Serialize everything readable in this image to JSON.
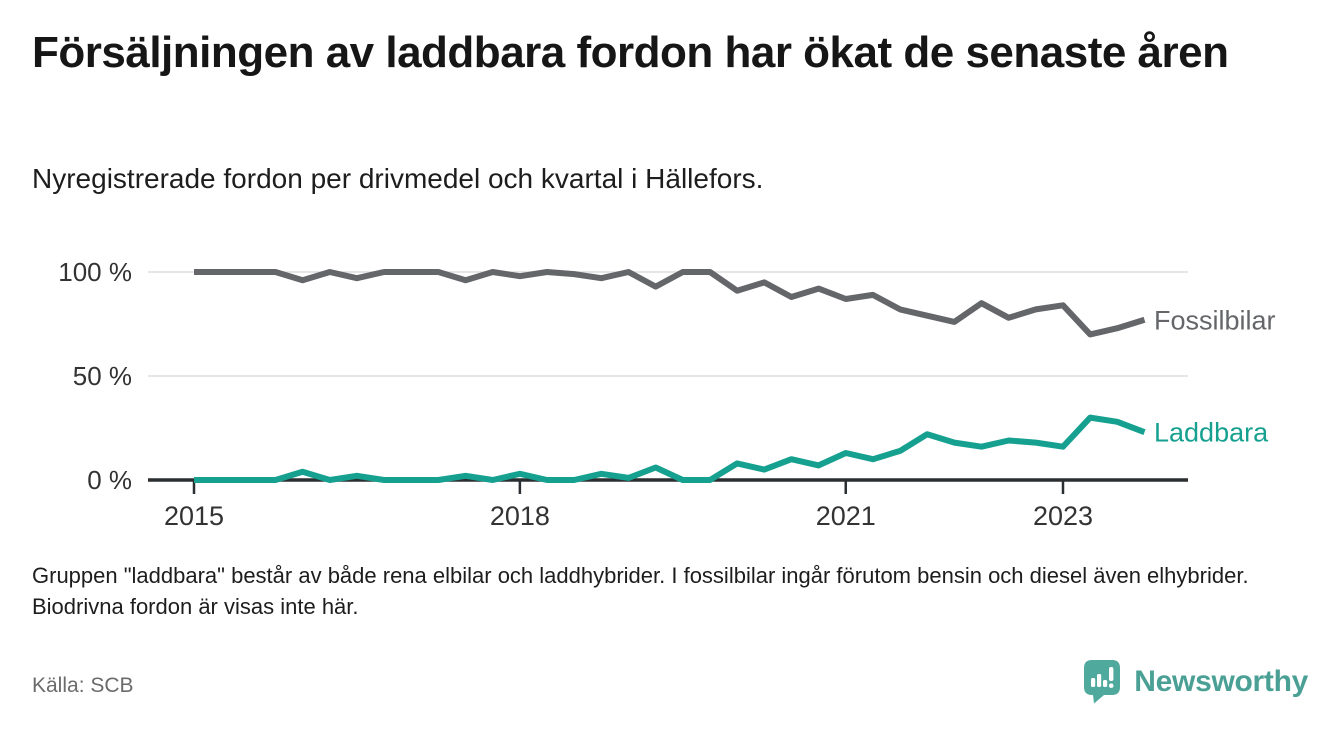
{
  "title": "Försäljningen av laddbara fordon har ökat de senaste åren",
  "subtitle": "Nyregistrerade fordon per drivmedel och kvartal i Hällefors.",
  "footnote": "Gruppen \"laddbara\" består av både rena elbilar och laddhybrider. I fossilbilar ingår förutom bensin och diesel även elhybrider. Biodrivna fordon är visas inte här.",
  "source": "Källa: SCB",
  "logo": {
    "brand": "Newsworthy",
    "icon": "bar-chart-pin-icon"
  },
  "colors": {
    "fossil": "#64666a",
    "laddbara": "#16a090",
    "grid": "#dddddd",
    "axis": "#2b2e31",
    "tick_label": "#333333",
    "brand": "#4ba095"
  },
  "chart_data": {
    "type": "line",
    "title": "",
    "xlabel": "",
    "ylabel": "",
    "x_unit": "quarter",
    "x_start": 2015,
    "x_step": 0.25,
    "ylim": [
      0,
      105
    ],
    "grid": "horizontal",
    "legend_position": "right-end-of-line",
    "x_ticks": [
      {
        "label": "2015",
        "value": 2015
      },
      {
        "label": "2018",
        "value": 2018
      },
      {
        "label": "2021",
        "value": 2021
      },
      {
        "label": "2023",
        "value": 2023
      }
    ],
    "y_ticks": [
      {
        "label": "100 %",
        "value": 100
      },
      {
        "label": "50 %",
        "value": 50
      },
      {
        "label": "0 %",
        "value": 0
      }
    ],
    "series": [
      {
        "name": "Fossilbilar",
        "color": "#64666a",
        "values": [
          100,
          100,
          100,
          100,
          96,
          100,
          97,
          100,
          100,
          100,
          96,
          100,
          98,
          100,
          99,
          97,
          100,
          93,
          100,
          100,
          91,
          95,
          88,
          92,
          87,
          89,
          82,
          79,
          76,
          85,
          78,
          82,
          84,
          70,
          73,
          77
        ]
      },
      {
        "name": "Laddbara",
        "color": "#16a090",
        "values": [
          0,
          0,
          0,
          0,
          4,
          0,
          2,
          0,
          0,
          0,
          2,
          0,
          3,
          0,
          0,
          3,
          1,
          6,
          0,
          0,
          8,
          5,
          10,
          7,
          13,
          10,
          14,
          22,
          18,
          16,
          19,
          18,
          16,
          30,
          28,
          23
        ]
      }
    ]
  }
}
